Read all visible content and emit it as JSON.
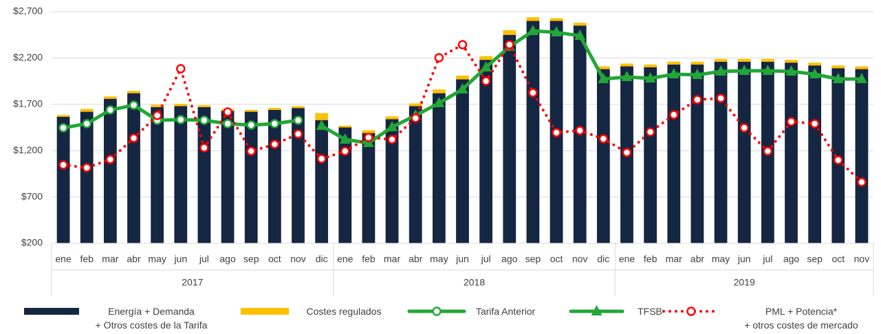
{
  "chart_data": {
    "type": "bar",
    "categories": [
      "ene",
      "feb",
      "mar",
      "abr",
      "may",
      "jun",
      "jul",
      "ago",
      "sep",
      "oct",
      "nov",
      "dic",
      "ene",
      "feb",
      "mar",
      "abr",
      "may",
      "jun",
      "jul",
      "ago",
      "sep",
      "oct",
      "nov",
      "dic",
      "ene",
      "feb",
      "mar",
      "abr",
      "may",
      "jun",
      "jul",
      "ago",
      "sep",
      "oct",
      "nov"
    ],
    "x_groups": [
      "2017",
      "2018",
      "2019"
    ],
    "ylim": [
      200,
      2700
    ],
    "yticks": [
      {
        "value": 200,
        "label": "$200"
      },
      {
        "value": 700,
        "label": "$700"
      },
      {
        "value": 1200,
        "label": "$1,200"
      },
      {
        "value": 1700,
        "label": "$1,700"
      },
      {
        "value": 2200,
        "label": "$2,200"
      },
      {
        "value": 2700,
        "label": "$2,700"
      }
    ],
    "grid": true,
    "legend": "bottom",
    "series": [
      {
        "name": "Energía + Demanda\n+ Otros costes de la Tarifa",
        "type": "bar",
        "color": "#152642",
        "values": [
          1365,
          1420,
          1560,
          1620,
          1470,
          1480,
          1470,
          1430,
          1420,
          1440,
          1460,
          1330,
          1250,
          1190,
          1340,
          1480,
          1620,
          1770,
          1980,
          2250,
          2400,
          2400,
          2350,
          1880,
          1910,
          1900,
          1930,
          1930,
          1960,
          1960,
          1960,
          1950,
          1920,
          1890,
          1880
        ]
      },
      {
        "name": "Costes regulados",
        "type": "bar",
        "color": "#ffc000",
        "values": [
          20,
          30,
          25,
          25,
          25,
          25,
          20,
          20,
          20,
          20,
          20,
          75,
          20,
          30,
          30,
          30,
          40,
          40,
          40,
          50,
          40,
          30,
          30,
          30,
          30,
          30,
          30,
          30,
          30,
          30,
          30,
          30,
          30,
          30,
          30
        ]
      },
      {
        "name": "Tarifa Anterior",
        "type": "line",
        "marker": "circle",
        "color": "#22a637",
        "values": [
          1446,
          1491,
          1639,
          1691,
          1528,
          1535,
          1528,
          1491,
          1476,
          1491,
          1528,
          null,
          null,
          null,
          null,
          null,
          null,
          null,
          null,
          null,
          null,
          null,
          null,
          null,
          null,
          null,
          null,
          null,
          null,
          null,
          null,
          null,
          null,
          null,
          null
        ]
      },
      {
        "name": "TFSB",
        "type": "line",
        "marker": "triangle",
        "color": "#22a637",
        "values": [
          null,
          null,
          null,
          null,
          null,
          null,
          null,
          null,
          null,
          null,
          null,
          1468,
          1320,
          1283,
          1454,
          1580,
          1713,
          1862,
          2099,
          2322,
          2492,
          2477,
          2440,
          1973,
          1995,
          1980,
          2025,
          2018,
          2055,
          2062,
          2062,
          2055,
          2025,
          1973,
          1973
        ]
      },
      {
        "name": "PML + Potencia*\n+ otros costes de mercado",
        "type": "line",
        "marker": "circle",
        "dotted": true,
        "color": "#ff0000",
        "values": [
          1046,
          1016,
          1105,
          1335,
          1580,
          2084,
          1231,
          1617,
          1194,
          1268,
          1380,
          1112,
          1194,
          1342,
          1320,
          1550,
          2203,
          2344,
          1951,
          2344,
          1825,
          1394,
          1417,
          1328,
          1179,
          1402,
          1587,
          1750,
          1765,
          1446,
          1194,
          1513,
          1491,
          1098,
          860
        ]
      }
    ]
  }
}
